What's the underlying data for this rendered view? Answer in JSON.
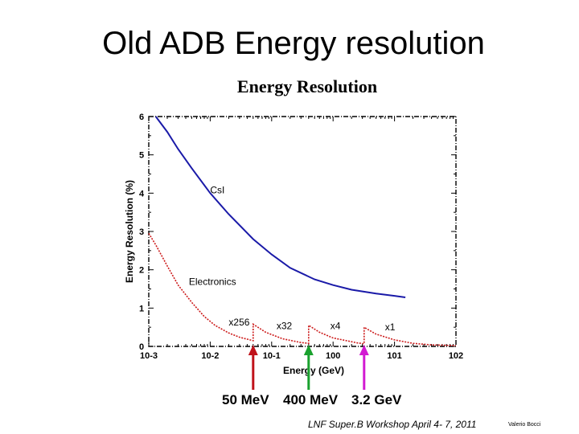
{
  "slide": {
    "title": "Old ADB Energy resolution",
    "footer": "LNF   Super.B Workshop April 4- 7, 2011",
    "author": "Valerio Bocci"
  },
  "arrows": [
    {
      "label": "50 MeV",
      "x_value": 0.05,
      "color": "#c0121a"
    },
    {
      "label": "400 MeV",
      "x_value": 0.4,
      "color": "#1aa12e"
    },
    {
      "label": "3.2 GeV",
      "x_value": 3.2,
      "color": "#d21ad2"
    }
  ],
  "chart_data": {
    "type": "line",
    "title": "Energy Resolution",
    "xlabel": "Energy (GeV)",
    "ylabel": "Energy Resolution (%)",
    "x_scale": "log",
    "xlim": [
      0.001,
      100
    ],
    "ylim": [
      0,
      6
    ],
    "x_ticks": [
      "10-3",
      "10-2",
      "10-1",
      "100",
      "101",
      "102"
    ],
    "y_ticks": [
      "0",
      "1",
      "2",
      "3",
      "4",
      "5",
      "6"
    ],
    "grid": false,
    "series": [
      {
        "name": "CsI",
        "color": "#1a1aa8",
        "style": "solid",
        "x": [
          0.0013,
          0.002,
          0.003,
          0.005,
          0.01,
          0.02,
          0.05,
          0.1,
          0.2,
          0.5,
          1,
          2,
          5,
          10,
          15
        ],
        "y": [
          6.0,
          5.6,
          5.15,
          4.65,
          4.0,
          3.45,
          2.8,
          2.4,
          2.05,
          1.75,
          1.6,
          1.48,
          1.38,
          1.32,
          1.28
        ]
      },
      {
        "name": "Electronics",
        "color": "#cc1a1a",
        "style": "dotted",
        "x": [
          0.001,
          0.0013,
          0.002,
          0.003,
          0.005,
          0.008,
          0.012,
          0.02,
          0.03,
          0.05,
          0.05,
          0.08,
          0.15,
          0.3,
          0.4,
          0.4,
          0.6,
          1,
          2.5,
          3.2,
          3.2,
          5,
          10,
          20,
          40,
          100
        ],
        "y": [
          2.95,
          2.65,
          2.1,
          1.6,
          1.15,
          0.78,
          0.55,
          0.35,
          0.24,
          0.15,
          0.58,
          0.37,
          0.2,
          0.1,
          0.08,
          0.55,
          0.37,
          0.22,
          0.09,
          0.07,
          0.5,
          0.32,
          0.17,
          0.08,
          0.04,
          0.02
        ]
      }
    ],
    "annotations": [
      {
        "text": "CsI",
        "x": 0.01,
        "y": 4.0
      },
      {
        "text": "Electronics",
        "x": 0.0045,
        "y": 1.6
      },
      {
        "text": "x256",
        "x": 0.02,
        "y": 0.55
      },
      {
        "text": "x32",
        "x": 0.12,
        "y": 0.45
      },
      {
        "text": "x4",
        "x": 0.9,
        "y": 0.45
      },
      {
        "text": "x1",
        "x": 7,
        "y": 0.42
      }
    ]
  }
}
